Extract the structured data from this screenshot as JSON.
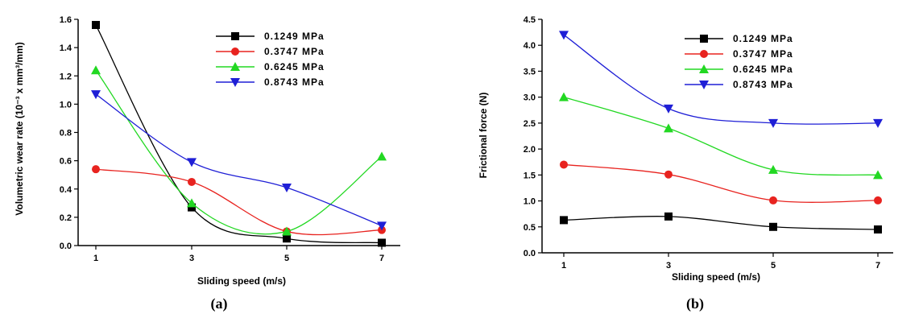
{
  "chart_data": [
    {
      "type": "line",
      "panel_label": "(a)",
      "xlabel": "Sliding speed (m/s)",
      "ylabel": "Volumetric wear rate (10⁻³ x mm³/mm)",
      "x": [
        1,
        3,
        5,
        7
      ],
      "x_ticks": [
        "1",
        "3",
        "5",
        "7"
      ],
      "y_ticks": [
        "0.0",
        "0.2",
        "0.4",
        "0.6",
        "0.8",
        "1.0",
        "1.2",
        "1.4",
        "1.6"
      ],
      "ylim": [
        0,
        1.6
      ],
      "grid": false,
      "legend_position": "top-right",
      "series": [
        {
          "name": "0.1249 MPa",
          "color": "#000000",
          "marker": "square",
          "values": [
            1.56,
            0.27,
            0.05,
            0.02
          ]
        },
        {
          "name": "0.3747 MPa",
          "color": "#e8231f",
          "marker": "circle",
          "values": [
            0.54,
            0.45,
            0.1,
            0.11
          ]
        },
        {
          "name": "0.6245 MPa",
          "color": "#22d822",
          "marker": "triangle-up",
          "values": [
            1.24,
            0.3,
            0.1,
            0.63
          ]
        },
        {
          "name": "0.8743 MPa",
          "color": "#1f1fd6",
          "marker": "triangle-down",
          "values": [
            1.07,
            0.59,
            0.41,
            0.14
          ]
        }
      ]
    },
    {
      "type": "line",
      "panel_label": "(b)",
      "xlabel": "Sliding speed (m/s)",
      "ylabel": "Frictional force (N)",
      "x": [
        1,
        3,
        5,
        7
      ],
      "x_ticks": [
        "1",
        "3",
        "5",
        "7"
      ],
      "y_ticks": [
        "0.0",
        "0.5",
        "1.0",
        "1.5",
        "2.0",
        "2.5",
        "3.0",
        "3.5",
        "4.0",
        "4.5"
      ],
      "ylim": [
        0,
        4.5
      ],
      "grid": false,
      "legend_position": "top-right",
      "series": [
        {
          "name": "0.1249 MPa",
          "color": "#000000",
          "marker": "square",
          "values": [
            0.63,
            0.7,
            0.5,
            0.45
          ]
        },
        {
          "name": "0.3747 MPa",
          "color": "#e8231f",
          "marker": "circle",
          "values": [
            1.7,
            1.51,
            1.01,
            1.01
          ]
        },
        {
          "name": "0.6245 MPa",
          "color": "#22d822",
          "marker": "triangle-up",
          "values": [
            3.0,
            2.4,
            1.6,
            1.5
          ]
        },
        {
          "name": "0.8743 MPa",
          "color": "#1f1fd6",
          "marker": "triangle-down",
          "values": [
            4.2,
            2.78,
            2.5,
            2.5
          ]
        }
      ]
    }
  ]
}
